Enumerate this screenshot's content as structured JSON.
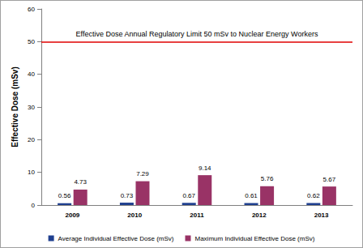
{
  "chart_data": {
    "type": "bar",
    "categories": [
      "2009",
      "2010",
      "2011",
      "2012",
      "2013"
    ],
    "series": [
      {
        "name": "Average Individual Effective Dose (mSv)",
        "color": "#1f3f8f",
        "values": [
          0.56,
          0.73,
          0.67,
          0.61,
          0.62
        ]
      },
      {
        "name": "Maximum Individual Effective Dose (mSv)",
        "color": "#993366",
        "values": [
          4.73,
          7.29,
          9.14,
          5.76,
          5.67
        ]
      }
    ],
    "y_label": "Effective Dose (mSv)",
    "ylim": [
      0,
      60
    ],
    "yticks": [
      0,
      10,
      20,
      30,
      40,
      50,
      60
    ],
    "grid": false,
    "legend": "bottom",
    "data_labels": true,
    "annotations": [
      {
        "text": "Effective Dose Annual Regulatory Limit 50 mSv to Nuclear Energy Workers",
        "y": 50
      }
    ]
  }
}
